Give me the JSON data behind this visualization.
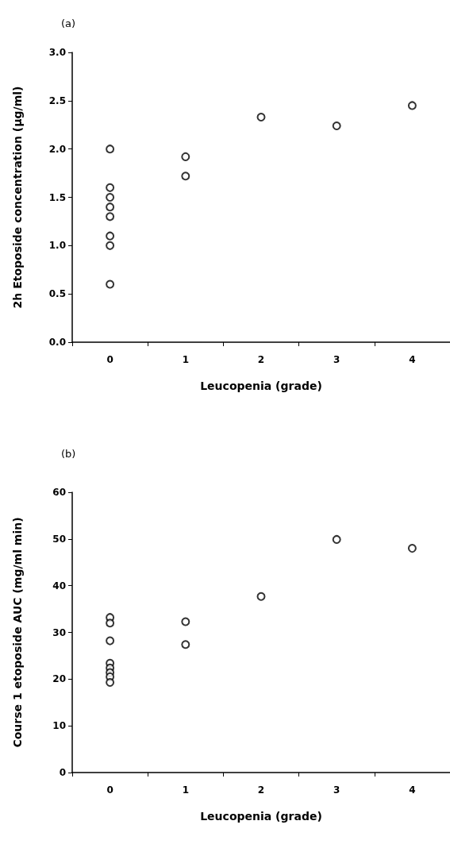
{
  "chart_data": [
    {
      "type": "scatter",
      "title": "(a)",
      "xlabel": "Leucopenia (grade)",
      "ylabel": "2h Etoposide concentration (µg/ml)",
      "categories": [
        "0",
        "1",
        "2",
        "3",
        "4"
      ],
      "series": [
        {
          "color": "#000000",
          "x": [
            "0",
            "0",
            "0",
            "0",
            "0",
            "0",
            "0",
            "0",
            "1",
            "1",
            "2",
            "3",
            "4"
          ],
          "values": [
            2.0,
            1.6,
            1.5,
            1.4,
            1.3,
            1.1,
            1.0,
            0.6,
            1.92,
            1.72,
            2.33,
            2.24,
            2.45
          ]
        }
      ],
      "ylim": [
        0,
        3
      ],
      "yticks": [
        {
          "value": 0,
          "label": "0.0"
        },
        {
          "value": 0.5,
          "label": "0.5"
        },
        {
          "value": 1,
          "label": "1.0"
        },
        {
          "value": 1.5,
          "label": "1.5"
        },
        {
          "value": 2,
          "label": "2.0"
        },
        {
          "value": 2.5,
          "label": "2.5"
        },
        {
          "value": 3,
          "label": "3.0"
        }
      ],
      "grid": false,
      "marker": "circle"
    },
    {
      "type": "scatter",
      "title": "(b)",
      "xlabel": "Leucopenia (grade)",
      "ylabel": "Course 1 etoposide AUC (mg/ml min)",
      "categories": [
        "0",
        "1",
        "2",
        "3",
        "4"
      ],
      "series": [
        {
          "color": "#000000",
          "x": [
            "0",
            "0",
            "0",
            "0",
            "0",
            "0",
            "0",
            "0",
            "1",
            "1",
            "2",
            "3",
            "4"
          ],
          "values": [
            33.2,
            32.0,
            28.2,
            23.4,
            22.4,
            21.4,
            20.5,
            19.3,
            32.3,
            27.4,
            37.7,
            49.9,
            48.0
          ]
        }
      ],
      "ylim": [
        0,
        60
      ],
      "yticks": [
        0,
        10,
        20,
        30,
        40,
        50,
        60
      ],
      "grid": false,
      "marker": "circle"
    }
  ]
}
